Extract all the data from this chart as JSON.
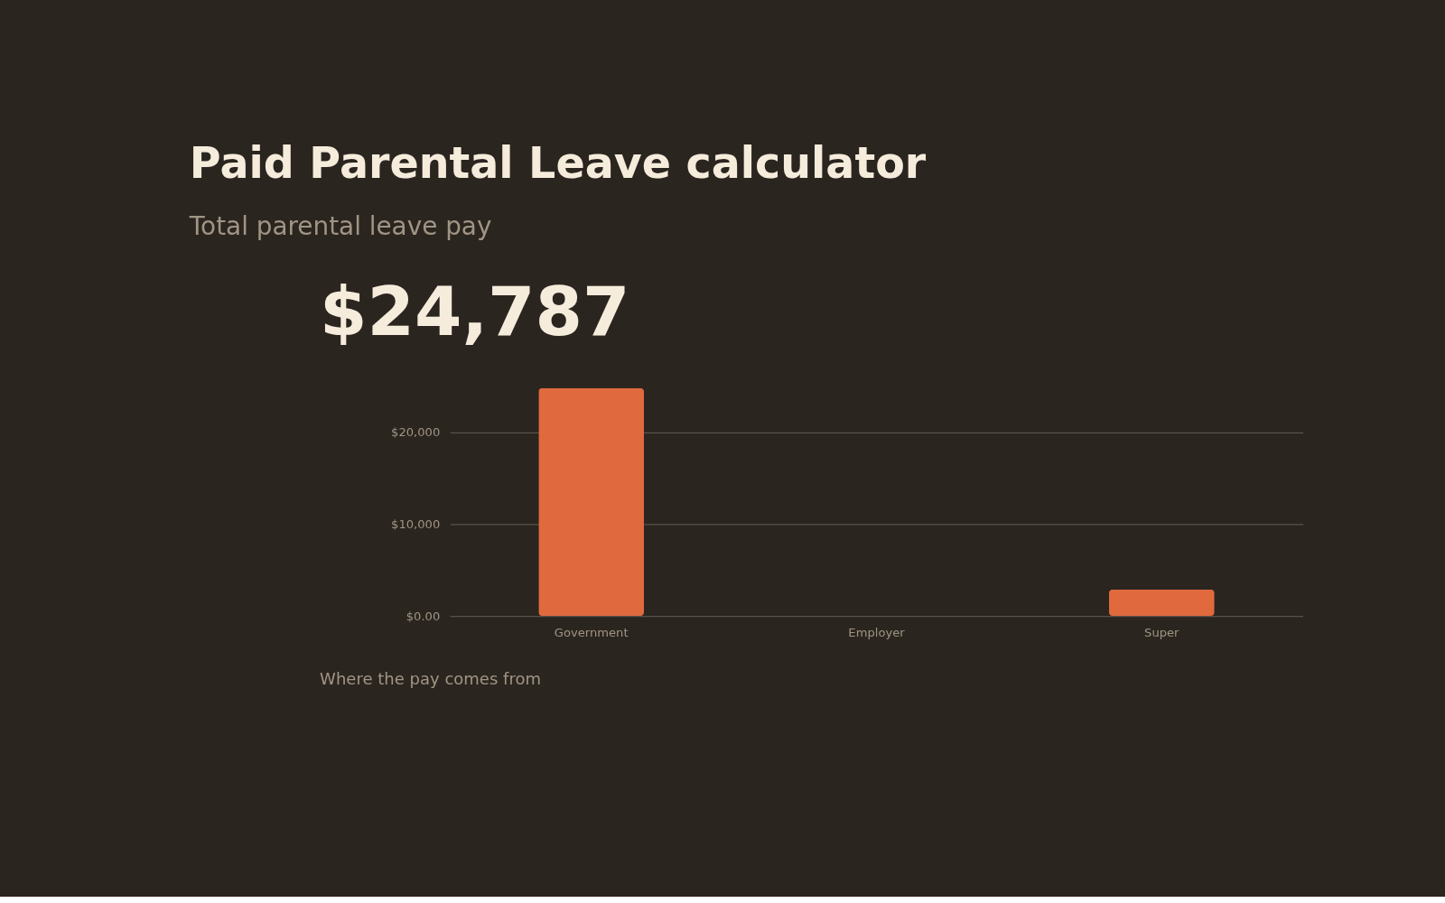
{
  "chart_data": {
    "type": "bar",
    "title": "Paid Parental Leave calculator",
    "subtitle": "Total parental leave pay",
    "annotations": [
      "$24,787",
      "Where the pay comes from"
    ],
    "categories": [
      "Government",
      "Employer",
      "Super"
    ],
    "values": [
      24800,
      0,
      2900
    ],
    "color": "#e0693e",
    "ylim": [
      0,
      24800
    ],
    "yticks": [
      {
        "value": 0,
        "label": "$0.00"
      },
      {
        "value": 10000,
        "label": "$10,000"
      },
      {
        "value": 20000,
        "label": "$20,000"
      }
    ],
    "grid": "y"
  }
}
